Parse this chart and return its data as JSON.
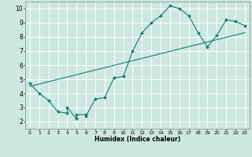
{
  "title": "",
  "xlabel": "Humidex (Indice chaleur)",
  "bg_color": "#cce8e0",
  "line_color": "#1a7a6e",
  "grid_color": "#ffffff",
  "xlim": [
    -0.5,
    23.5
  ],
  "ylim": [
    1.5,
    10.5
  ],
  "xticks": [
    0,
    1,
    2,
    3,
    4,
    5,
    6,
    7,
    8,
    9,
    10,
    11,
    12,
    13,
    14,
    15,
    16,
    17,
    18,
    19,
    20,
    21,
    22,
    23
  ],
  "yticks": [
    2,
    3,
    4,
    5,
    6,
    7,
    8,
    9,
    10
  ],
  "curve_x": [
    0,
    1,
    2,
    3,
    4,
    4,
    5,
    5,
    6,
    6,
    7,
    8,
    9,
    10,
    11,
    12,
    13,
    14,
    15,
    16,
    17,
    18,
    19,
    20,
    21,
    22,
    23
  ],
  "curve_y": [
    4.7,
    4.0,
    3.5,
    2.7,
    2.6,
    3.0,
    2.2,
    2.5,
    2.5,
    2.4,
    3.6,
    3.7,
    5.1,
    5.2,
    7.0,
    8.3,
    9.0,
    9.5,
    10.2,
    10.0,
    9.5,
    8.3,
    7.3,
    8.1,
    9.2,
    9.1,
    8.8
  ],
  "line2_x": [
    0,
    23
  ],
  "line2_y": [
    4.5,
    8.3
  ],
  "marker": "D",
  "marker_size": 2.0,
  "linewidth": 0.8
}
